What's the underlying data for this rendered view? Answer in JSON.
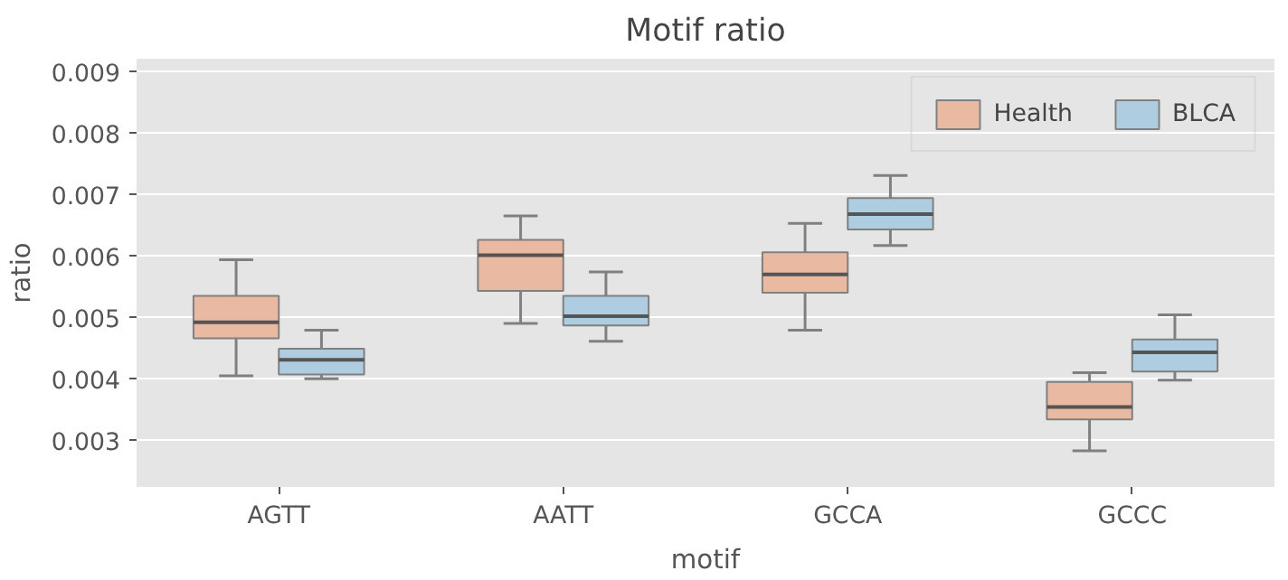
{
  "chart_data": {
    "type": "box",
    "title": "Motif ratio",
    "xlabel": "motif",
    "ylabel": "ratio",
    "categories": [
      "AGTT",
      "AATT",
      "GCCA",
      "GCCC"
    ],
    "ylim": [
      0.00225,
      0.00922
    ],
    "yticks": [
      0.003,
      0.004,
      0.005,
      0.006,
      0.007,
      0.008,
      0.009
    ],
    "grid": "y",
    "legend": "top right",
    "series": [
      {
        "name": "Health",
        "color": "#eab9a1",
        "boxes": [
          {
            "low": 0.00406,
            "q1": 0.00467,
            "median": 0.00493,
            "q3": 0.00536,
            "high": 0.00595
          },
          {
            "low": 0.00491,
            "q1": 0.00544,
            "median": 0.00602,
            "q3": 0.00627,
            "high": 0.00666
          },
          {
            "low": 0.0048,
            "q1": 0.00541,
            "median": 0.00571,
            "q3": 0.00607,
            "high": 0.00654
          },
          {
            "low": 0.00284,
            "q1": 0.00335,
            "median": 0.00355,
            "q3": 0.00396,
            "high": 0.00411
          }
        ]
      },
      {
        "name": "BLCA",
        "color": "#aecde0",
        "boxes": [
          {
            "low": 0.00401,
            "q1": 0.00408,
            "median": 0.00432,
            "q3": 0.0045,
            "high": 0.0048
          },
          {
            "low": 0.00462,
            "q1": 0.00488,
            "median": 0.00503,
            "q3": 0.00536,
            "high": 0.00575
          },
          {
            "low": 0.00618,
            "q1": 0.00644,
            "median": 0.00669,
            "q3": 0.00695,
            "high": 0.00732
          },
          {
            "low": 0.00399,
            "q1": 0.00413,
            "median": 0.00444,
            "q3": 0.00465,
            "high": 0.00505
          }
        ]
      }
    ]
  }
}
